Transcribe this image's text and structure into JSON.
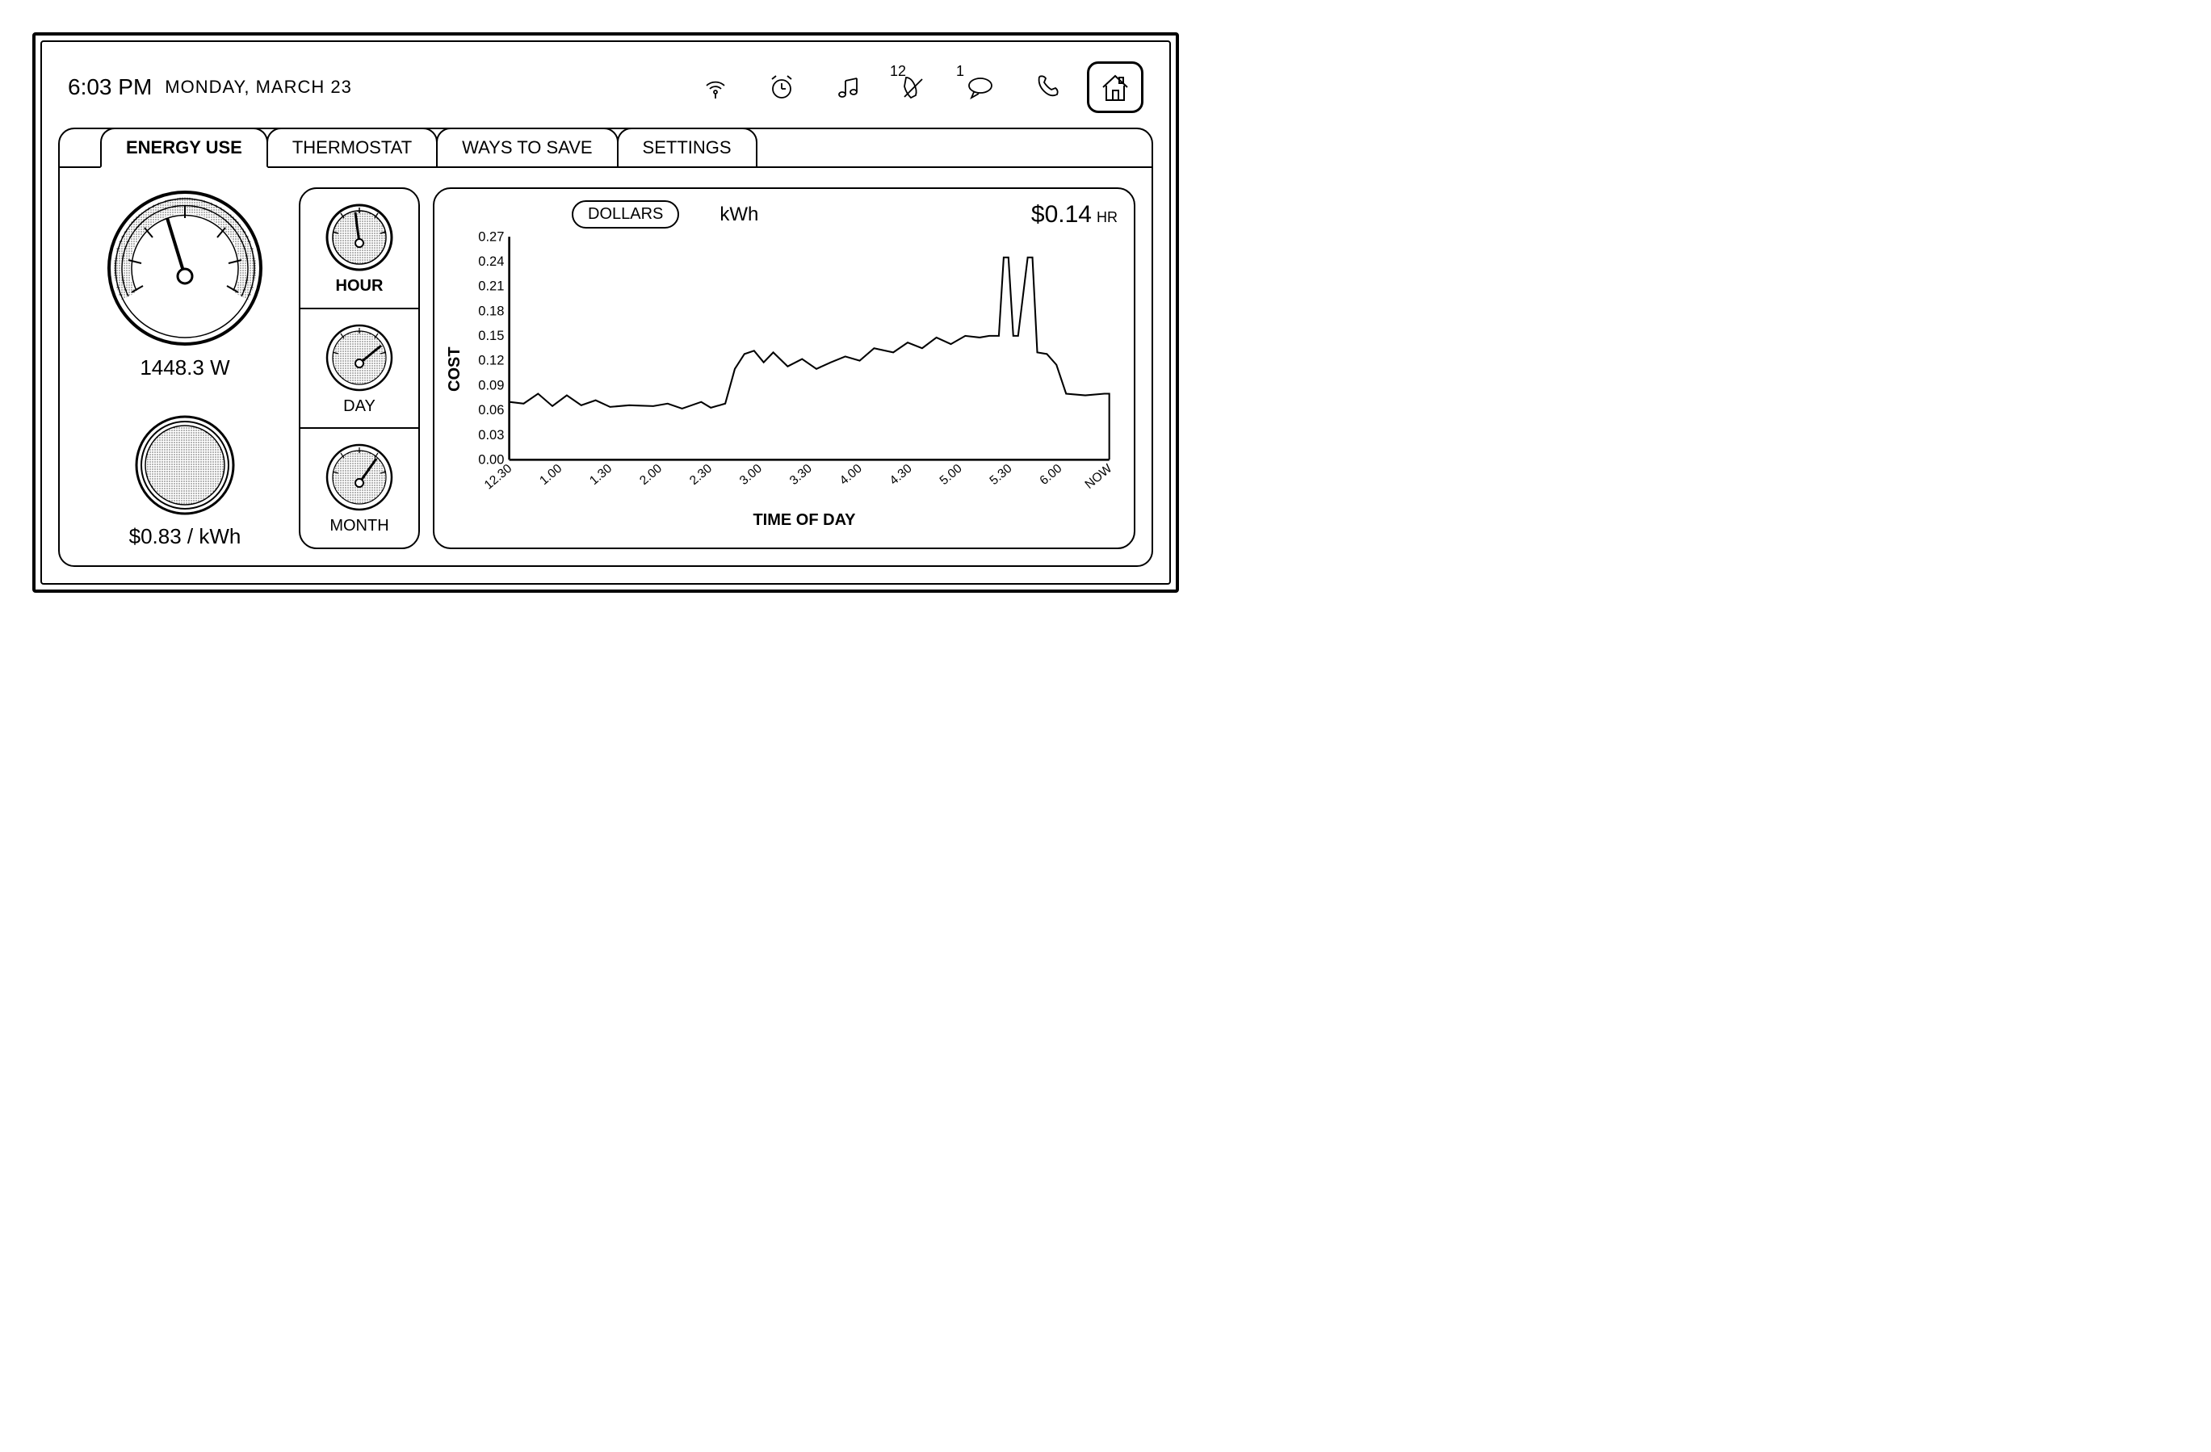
{
  "header": {
    "time": "6:03 PM",
    "date": "MONDAY, MARCH 23",
    "status": {
      "missed_calls_badge": "12",
      "messages_badge": "1"
    }
  },
  "tabs": [
    {
      "label": "ENERGY USE",
      "active": true
    },
    {
      "label": "THERMOSTAT",
      "active": false
    },
    {
      "label": "WAYS TO SAVE",
      "active": false
    },
    {
      "label": "SETTINGS",
      "active": false
    }
  ],
  "main_gauge": {
    "reading": "1448.3 W",
    "needle_angle_deg": -20
  },
  "price": {
    "reading": "$0.83 / kWh"
  },
  "periods": [
    {
      "label": "HOUR",
      "bold": true,
      "needle_angle_deg": -10
    },
    {
      "label": "DAY",
      "bold": false,
      "needle_angle_deg": 45
    },
    {
      "label": "MONTH",
      "bold": false,
      "needle_angle_deg": 30
    }
  ],
  "chart": {
    "type": "line",
    "toggle_selected": "DOLLARS",
    "toggle_other": "kWh",
    "current_rate_value": "$0.14",
    "current_rate_unit": "HR",
    "y_label": "COST",
    "x_label": "TIME OF DAY",
    "ylim": [
      0.0,
      0.27
    ],
    "y_ticks": [
      0.0,
      0.03,
      0.06,
      0.09,
      0.12,
      0.15,
      0.18,
      0.21,
      0.24,
      0.27
    ],
    "x_ticks": [
      "12.30",
      "1.00",
      "1.30",
      "2.00",
      "2.30",
      "3.00",
      "3.30",
      "4.00",
      "4.30",
      "5.00",
      "5.30",
      "6.00",
      "NOW"
    ],
    "stroke_color": "#000000",
    "stroke_width": 2,
    "background_color": "#ffffff",
    "series": [
      [
        0,
        0.07
      ],
      [
        0.3,
        0.068
      ],
      [
        0.6,
        0.08
      ],
      [
        0.9,
        0.065
      ],
      [
        1.2,
        0.078
      ],
      [
        1.5,
        0.066
      ],
      [
        1.8,
        0.072
      ],
      [
        2.1,
        0.064
      ],
      [
        2.5,
        0.066
      ],
      [
        3.0,
        0.065
      ],
      [
        3.3,
        0.068
      ],
      [
        3.6,
        0.062
      ],
      [
        4.0,
        0.07
      ],
      [
        4.2,
        0.063
      ],
      [
        4.5,
        0.068
      ],
      [
        4.7,
        0.11
      ],
      [
        4.9,
        0.128
      ],
      [
        5.1,
        0.132
      ],
      [
        5.3,
        0.118
      ],
      [
        5.5,
        0.13
      ],
      [
        5.8,
        0.113
      ],
      [
        6.1,
        0.122
      ],
      [
        6.4,
        0.11
      ],
      [
        6.7,
        0.118
      ],
      [
        7.0,
        0.125
      ],
      [
        7.3,
        0.12
      ],
      [
        7.6,
        0.135
      ],
      [
        8.0,
        0.13
      ],
      [
        8.3,
        0.142
      ],
      [
        8.6,
        0.135
      ],
      [
        8.9,
        0.148
      ],
      [
        9.2,
        0.14
      ],
      [
        9.5,
        0.15
      ],
      [
        9.8,
        0.148
      ],
      [
        10.0,
        0.15
      ],
      [
        10.2,
        0.15
      ],
      [
        10.3,
        0.245
      ],
      [
        10.4,
        0.245
      ],
      [
        10.5,
        0.15
      ],
      [
        10.6,
        0.15
      ],
      [
        10.8,
        0.245
      ],
      [
        10.9,
        0.245
      ],
      [
        11.0,
        0.13
      ],
      [
        11.2,
        0.128
      ],
      [
        11.4,
        0.115
      ],
      [
        11.6,
        0.08
      ],
      [
        12.0,
        0.078
      ],
      [
        12.4,
        0.08
      ],
      [
        12.5,
        0.08
      ],
      [
        12.5,
        0.0
      ]
    ],
    "x_domain": [
      0,
      12.5
    ]
  },
  "colors": {
    "line": "#000000",
    "bg": "#ffffff",
    "dotfill": "#d9d9d9"
  }
}
